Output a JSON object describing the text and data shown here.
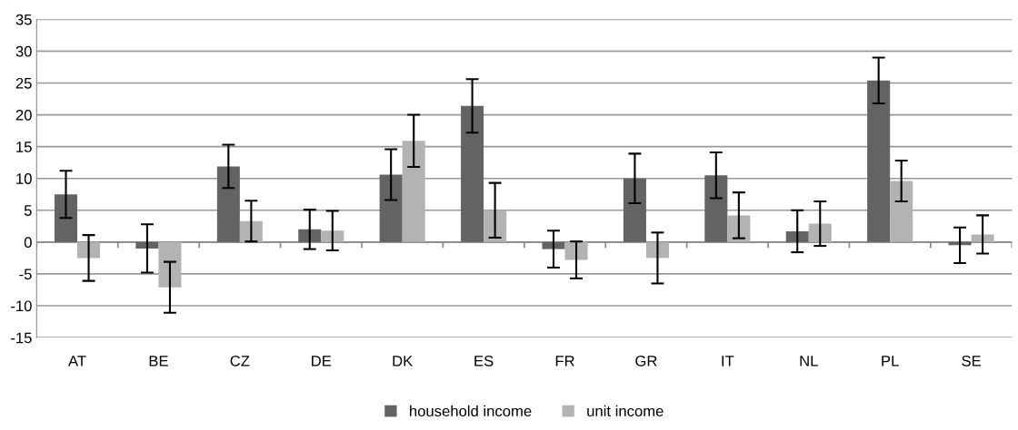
{
  "chart_data": {
    "type": "bar",
    "categories": [
      "AT",
      "BE",
      "CZ",
      "DE",
      "DK",
      "ES",
      "FR",
      "GR",
      "IT",
      "NL",
      "PL",
      "SE"
    ],
    "series": [
      {
        "name": "household income",
        "color": "#636363",
        "values": [
          7.5,
          -1,
          11.9,
          2,
          10.6,
          21.4,
          -1.1,
          10,
          10.5,
          1.7,
          25.4,
          -0.5
        ],
        "errors": [
          3.7,
          3.8,
          3.4,
          3.1,
          4,
          4.2,
          2.9,
          3.9,
          3.6,
          3.3,
          3.6,
          2.8
        ]
      },
      {
        "name": "unit income",
        "color": "#b3b3b3",
        "values": [
          -2.5,
          -7.1,
          3.3,
          1.8,
          15.9,
          5,
          -2.8,
          -2.5,
          4.2,
          2.9,
          9.6,
          1.2
        ],
        "errors": [
          3.6,
          4,
          3.2,
          3.1,
          4.1,
          4.3,
          2.9,
          4,
          3.6,
          3.5,
          3.2,
          3
        ]
      }
    ],
    "ylim": [
      -15,
      35
    ],
    "yticks": [
      -15,
      -10,
      -5,
      0,
      5,
      10,
      15,
      20,
      25,
      30,
      35
    ],
    "grid": "y",
    "legend": "bottom"
  }
}
